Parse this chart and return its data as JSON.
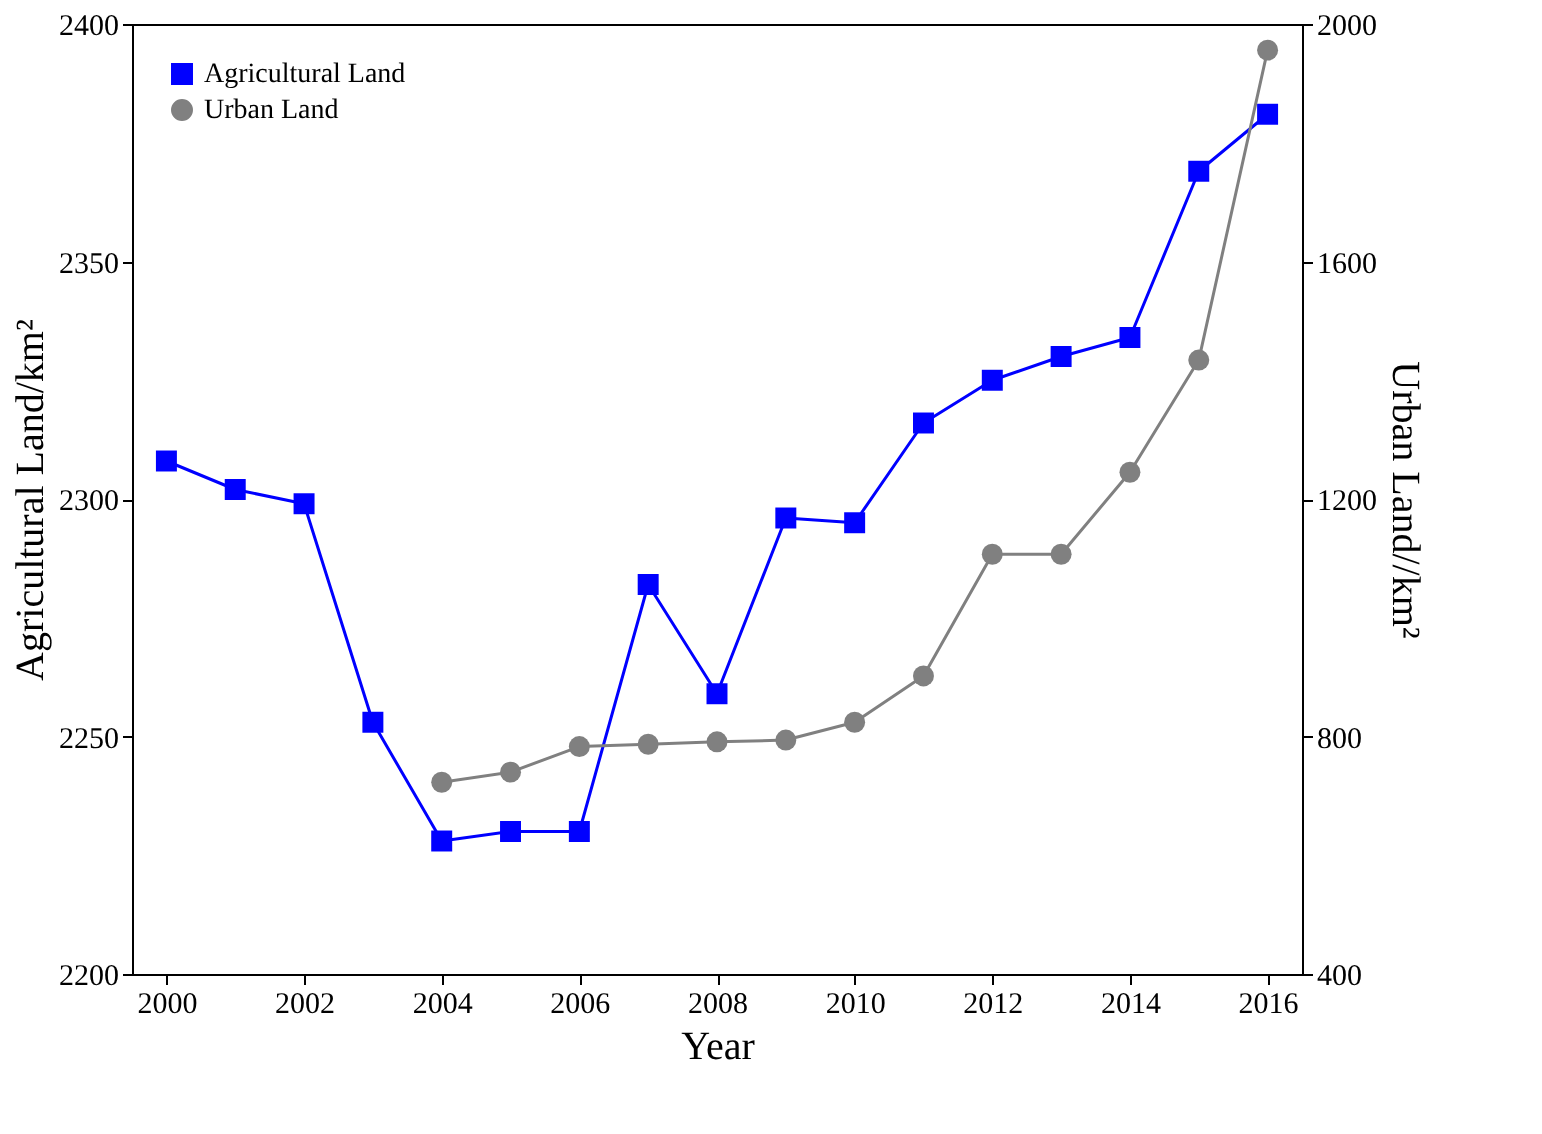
{
  "chart_data": {
    "type": "line",
    "xlabel": "Year",
    "ylabel": "Agricultural Land/km²",
    "y2label": "Urban Land//km²",
    "x": [
      2000,
      2001,
      2002,
      2003,
      2004,
      2005,
      2006,
      2007,
      2008,
      2009,
      2010,
      2011,
      2012,
      2013,
      2014,
      2015,
      2016
    ],
    "series": [
      {
        "name": "Agricultural Land",
        "color": "#0000ff",
        "marker": "square",
        "values": [
          2308,
          2302,
          2299,
          2253,
          2228,
          2230,
          2230,
          2282,
          2259,
          2296,
          2295,
          2316,
          2325,
          2330,
          2334,
          2369,
          2381
        ]
      },
      {
        "name": "Urban Land",
        "color": "#808080",
        "marker": "circle",
        "axis": "y2",
        "values": [
          null,
          null,
          null,
          null,
          723,
          740,
          783,
          787,
          791,
          794,
          824,
          902,
          1107,
          1107,
          1245,
          1434,
          1956
        ]
      }
    ],
    "xlim": [
      1999.5,
      2016.5
    ],
    "xticks": [
      2000,
      2002,
      2004,
      2006,
      2008,
      2010,
      2012,
      2014,
      2016
    ],
    "ylim": [
      2200,
      2400
    ],
    "yticks": [
      2200,
      2250,
      2300,
      2350,
      2400
    ],
    "y2lim": [
      400,
      2000
    ],
    "y2ticks": [
      400,
      800,
      1200,
      1600,
      2000
    ],
    "grid": false,
    "legend": "top left",
    "line_style": "solid"
  }
}
